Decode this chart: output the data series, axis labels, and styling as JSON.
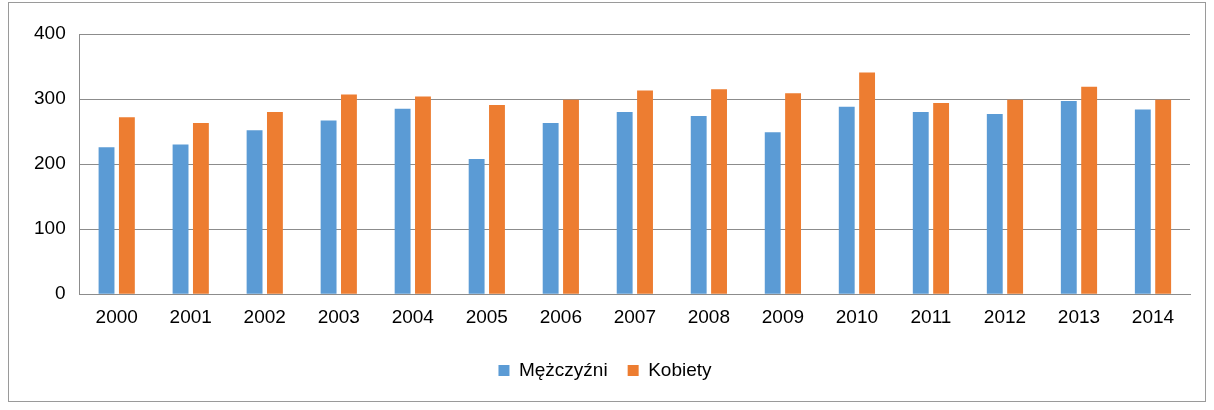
{
  "chart_data": {
    "type": "bar",
    "categories": [
      "2000",
      "2001",
      "2002",
      "2003",
      "2004",
      "2005",
      "2006",
      "2007",
      "2008",
      "2009",
      "2010",
      "2011",
      "2012",
      "2013",
      "2014"
    ],
    "series": [
      {
        "name": "Mężczyźni",
        "color": "#5b9bd5",
        "values": [
          226,
          230,
          252,
          267,
          285,
          208,
          263,
          280,
          274,
          249,
          288,
          280,
          277,
          297,
          284
        ]
      },
      {
        "name": "Kobiety",
        "color": "#ed7d31",
        "values": [
          272,
          263,
          280,
          307,
          304,
          291,
          299,
          313,
          315,
          309,
          341,
          294,
          299,
          319,
          299
        ]
      }
    ],
    "ylim": [
      0,
      400
    ],
    "yticks": [
      0,
      100,
      200,
      300,
      400
    ],
    "grid": "y",
    "legend": "bottom"
  }
}
